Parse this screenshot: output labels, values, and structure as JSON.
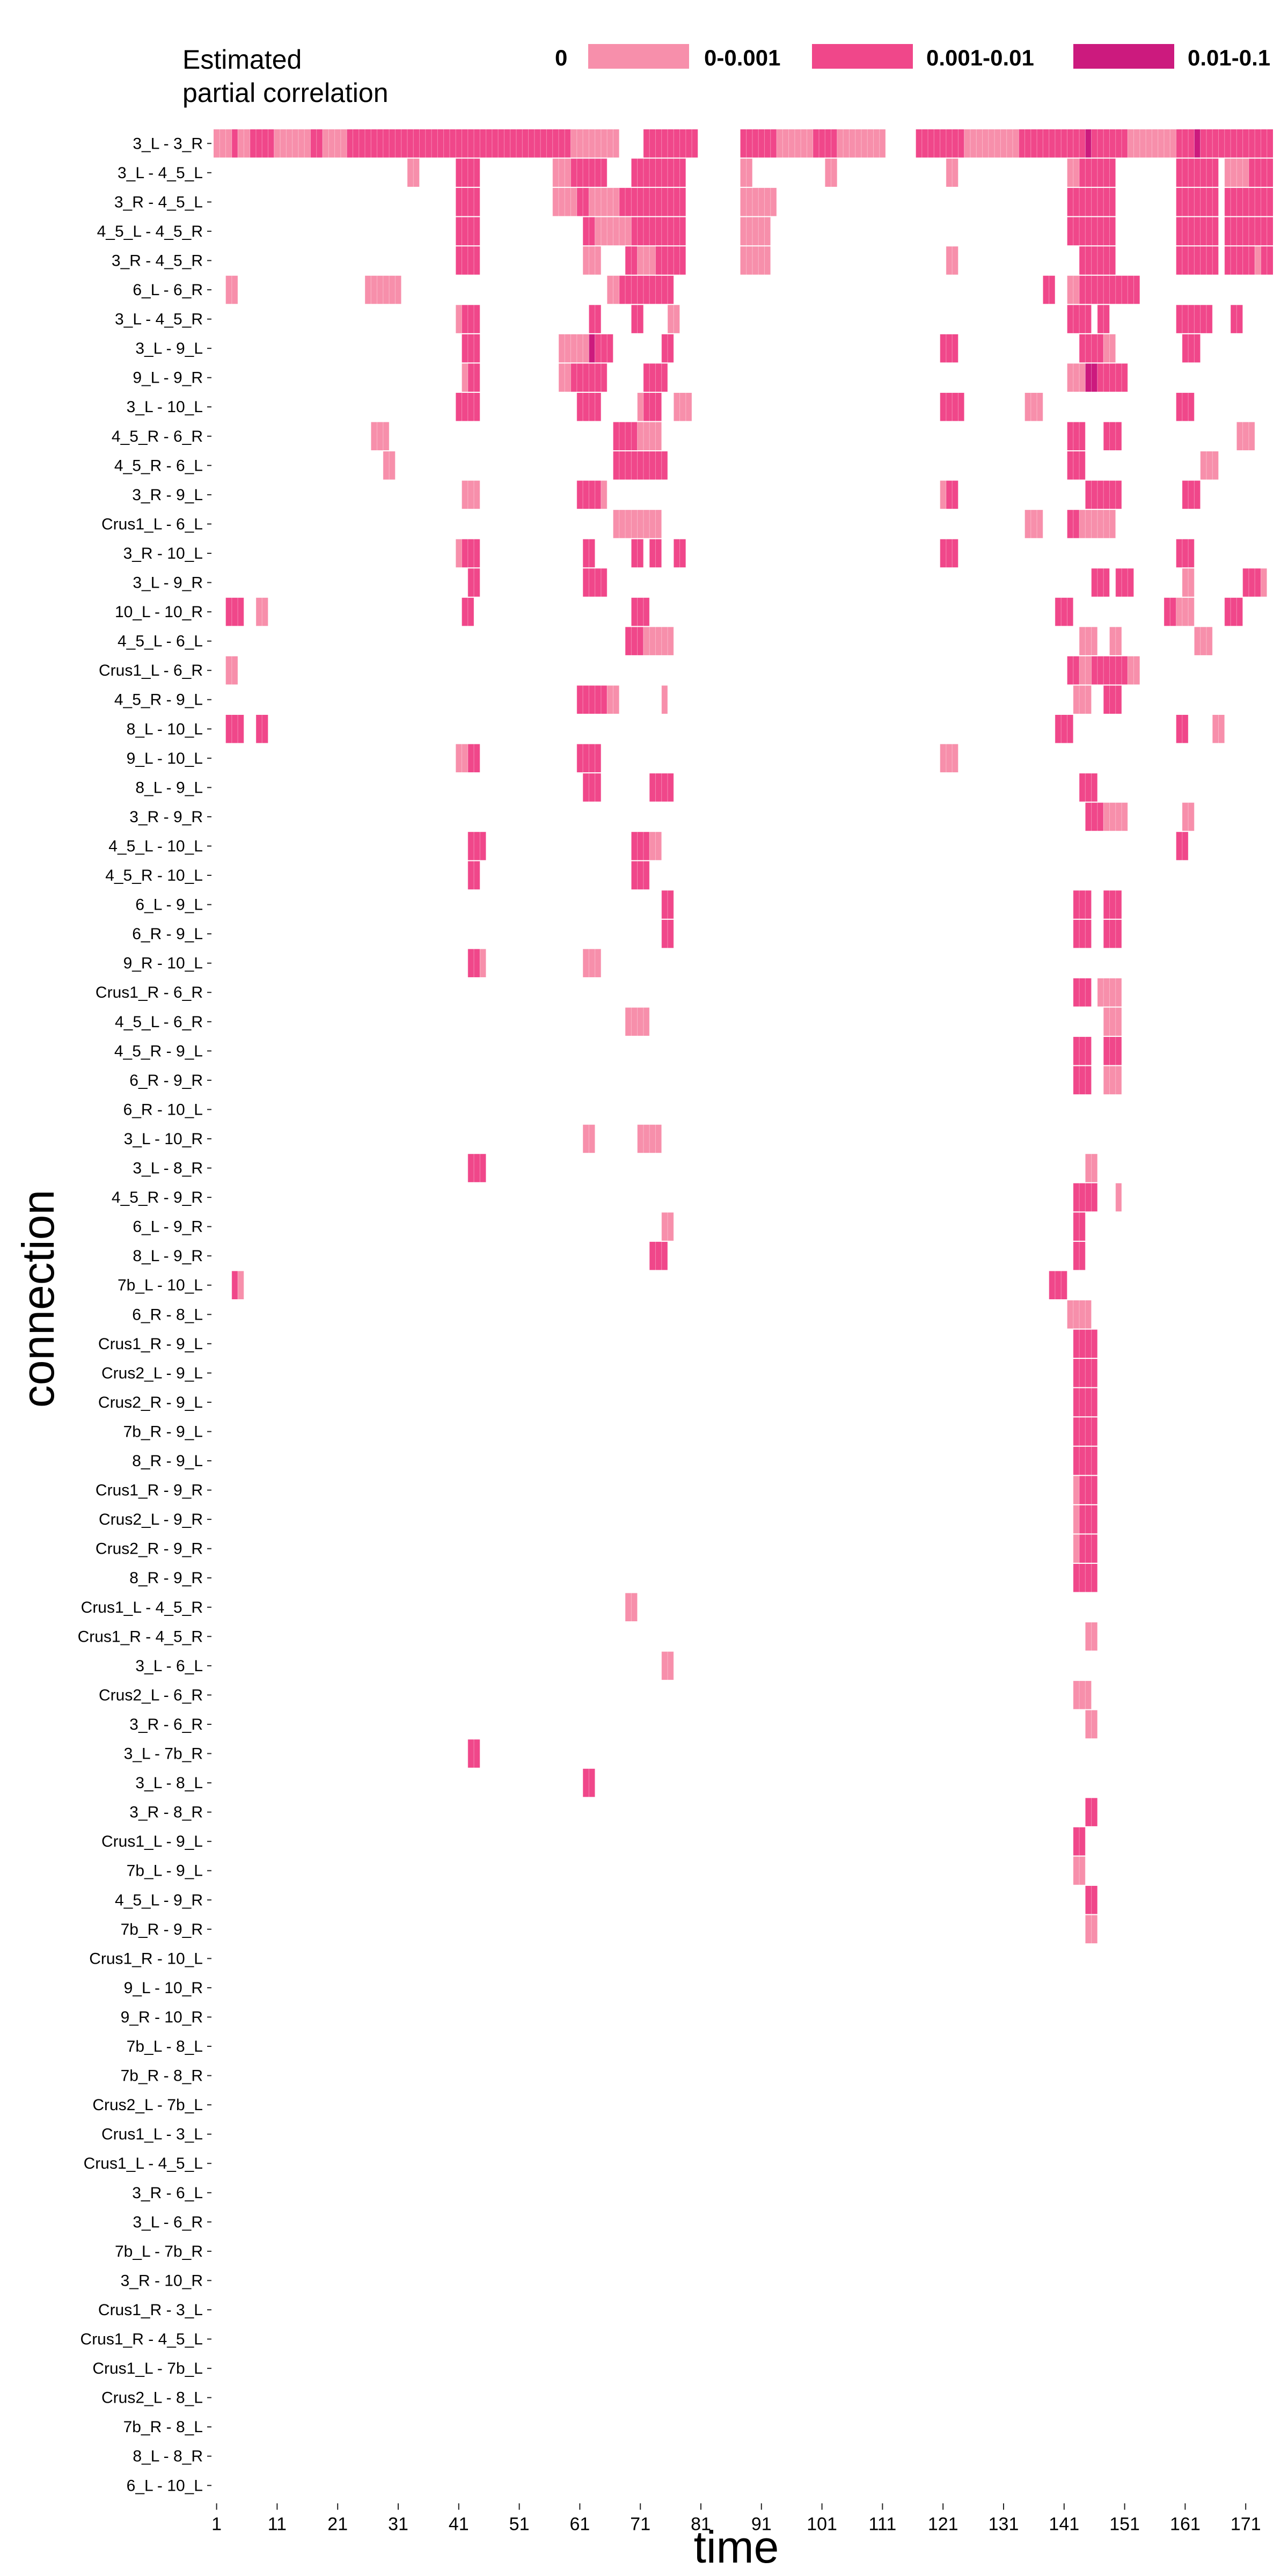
{
  "chart_data": {
    "type": "heatmap",
    "xlabel": "time",
    "ylabel": "connection",
    "xlim": [
      1,
      176
    ],
    "x_ticks": [
      1,
      11,
      21,
      31,
      41,
      51,
      61,
      71,
      81,
      91,
      101,
      111,
      121,
      131,
      141,
      151,
      161,
      171
    ],
    "legend": {
      "title_line1": "Estimated",
      "title_line2": "partial correlation",
      "placement": "top",
      "entries": [
        {
          "label": "0",
          "color": "#ffffff"
        },
        {
          "label": "0-0.001",
          "color": "#f78fab"
        },
        {
          "label": "0.001-0.01",
          "color": "#f0478a"
        },
        {
          "label": "0.01-0.1",
          "color": "#cc1a7e"
        }
      ]
    },
    "colors": {
      "1": "#f78fab",
      "2": "#f0478a",
      "3": "#cc1a7e"
    },
    "connections": [
      "3_L - 3_R",
      "3_L - 4_5_L",
      "3_R - 4_5_L",
      "4_5_L - 4_5_R",
      "3_R - 4_5_R",
      "6_L - 6_R",
      "3_L - 4_5_R",
      "3_L - 9_L",
      "9_L - 9_R",
      "3_L - 10_L",
      "4_5_R - 6_R",
      "4_5_R - 6_L",
      "3_R - 9_L",
      "Crus1_L - 6_L",
      "3_R - 10_L",
      "3_L - 9_R",
      "10_L - 10_R",
      "4_5_L - 6_L",
      "Crus1_L - 6_R",
      "4_5_R - 9_L",
      "8_L - 10_L",
      "9_L - 10_L",
      "8_L - 9_L",
      "3_R - 9_R",
      "4_5_L - 10_L",
      "4_5_R - 10_L",
      "6_L - 9_L",
      "6_R - 9_L",
      "9_R - 10_L",
      "Crus1_R - 6_R",
      "4_5_L - 6_R",
      "4_5_R - 9_L",
      "6_R - 9_R",
      "6_R - 10_L",
      "3_L - 10_R",
      "3_L - 8_R",
      "4_5_R - 9_R",
      "6_L - 9_R",
      "8_L - 9_R",
      "7b_L - 10_L",
      "6_R - 8_L",
      "Crus1_R - 9_L",
      "Crus2_L - 9_L",
      "Crus2_R - 9_L",
      "7b_R - 9_L",
      "8_R - 9_L",
      "Crus1_R - 9_R",
      "Crus2_L - 9_R",
      "Crus2_R - 9_R",
      "8_R - 9_R",
      "Crus1_L - 4_5_R",
      "Crus1_R - 4_5_R",
      "3_L - 6_L",
      "Crus2_L - 6_R",
      "3_R - 6_R",
      "3_L - 7b_R",
      "3_L - 8_L",
      "3_R - 8_R",
      "Crus1_L - 9_L",
      "7b_L - 9_L",
      "4_5_L - 9_R",
      "7b_R - 9_R",
      "Crus1_R - 10_L",
      "9_L - 10_R",
      "9_R - 10_R",
      "7b_L - 8_L",
      "7b_R - 8_R",
      "Crus2_L - 7b_L",
      "Crus1_L - 3_L",
      "Crus1_L - 4_5_L",
      "3_R - 6_L",
      "3_L - 6_R",
      "7b_L - 7b_R",
      "3_R - 10_R",
      "Crus1_R - 3_L",
      "Crus1_R - 4_5_L",
      "Crus1_L - 7b_L",
      "Crus2_L - 8_L",
      "7b_R - 8_L",
      "8_L - 8_R",
      "6_L - 10_L"
    ],
    "segments": [
      [
        0,
        1,
        4,
        1
      ],
      [
        0,
        4,
        5,
        2
      ],
      [
        0,
        5,
        7,
        1
      ],
      [
        0,
        7,
        11,
        2
      ],
      [
        0,
        11,
        17,
        1
      ],
      [
        0,
        17,
        19,
        2
      ],
      [
        0,
        19,
        23,
        1
      ],
      [
        0,
        23,
        60,
        2
      ],
      [
        0,
        60,
        68,
        1
      ],
      [
        0,
        72,
        81,
        2
      ],
      [
        0,
        88,
        94,
        2
      ],
      [
        0,
        94,
        100,
        1
      ],
      [
        0,
        100,
        104,
        2
      ],
      [
        0,
        104,
        106,
        1
      ],
      [
        0,
        106,
        112,
        1
      ],
      [
        0,
        117,
        125,
        2
      ],
      [
        0,
        125,
        134,
        1
      ],
      [
        0,
        134,
        145,
        2
      ],
      [
        0,
        145,
        146,
        3
      ],
      [
        0,
        146,
        152,
        2
      ],
      [
        0,
        152,
        160,
        1
      ],
      [
        0,
        160,
        163,
        2
      ],
      [
        0,
        163,
        164,
        3
      ],
      [
        0,
        164,
        176,
        2
      ],
      [
        1,
        33,
        35,
        1
      ],
      [
        1,
        41,
        45,
        2
      ],
      [
        1,
        57,
        60,
        1
      ],
      [
        1,
        60,
        66,
        2
      ],
      [
        1,
        70,
        79,
        2
      ],
      [
        1,
        88,
        90,
        1
      ],
      [
        1,
        102,
        104,
        1
      ],
      [
        1,
        122,
        124,
        1
      ],
      [
        1,
        142,
        144,
        1
      ],
      [
        1,
        144,
        150,
        2
      ],
      [
        1,
        160,
        167,
        2
      ],
      [
        1,
        168,
        172,
        1
      ],
      [
        1,
        172,
        176,
        2
      ],
      [
        2,
        41,
        45,
        2
      ],
      [
        2,
        57,
        61,
        1
      ],
      [
        2,
        61,
        63,
        2
      ],
      [
        2,
        63,
        68,
        1
      ],
      [
        2,
        68,
        79,
        2
      ],
      [
        2,
        88,
        94,
        1
      ],
      [
        2,
        142,
        150,
        2
      ],
      [
        2,
        160,
        167,
        2
      ],
      [
        2,
        168,
        176,
        2
      ],
      [
        3,
        41,
        45,
        2
      ],
      [
        3,
        62,
        64,
        2
      ],
      [
        3,
        64,
        70,
        1
      ],
      [
        3,
        70,
        79,
        2
      ],
      [
        3,
        88,
        93,
        1
      ],
      [
        3,
        142,
        150,
        2
      ],
      [
        3,
        160,
        167,
        2
      ],
      [
        3,
        168,
        176,
        2
      ],
      [
        4,
        41,
        45,
        2
      ],
      [
        4,
        62,
        65,
        1
      ],
      [
        4,
        69,
        71,
        2
      ],
      [
        4,
        71,
        74,
        1
      ],
      [
        4,
        74,
        79,
        2
      ],
      [
        4,
        88,
        93,
        1
      ],
      [
        4,
        122,
        124,
        1
      ],
      [
        4,
        144,
        150,
        2
      ],
      [
        4,
        160,
        167,
        2
      ],
      [
        4,
        168,
        173,
        2
      ],
      [
        4,
        173,
        174,
        1
      ],
      [
        4,
        174,
        176,
        2
      ],
      [
        5,
        3,
        5,
        1
      ],
      [
        5,
        26,
        32,
        1
      ],
      [
        5,
        66,
        68,
        1
      ],
      [
        5,
        68,
        77,
        2
      ],
      [
        5,
        138,
        140,
        2
      ],
      [
        5,
        142,
        144,
        1
      ],
      [
        5,
        144,
        154,
        2
      ],
      [
        6,
        41,
        42,
        1
      ],
      [
        6,
        42,
        45,
        2
      ],
      [
        6,
        63,
        65,
        2
      ],
      [
        6,
        70,
        72,
        2
      ],
      [
        6,
        76,
        78,
        1
      ],
      [
        6,
        142,
        146,
        2
      ],
      [
        6,
        147,
        149,
        2
      ],
      [
        6,
        160,
        166,
        2
      ],
      [
        6,
        169,
        171,
        2
      ],
      [
        7,
        42,
        45,
        2
      ],
      [
        7,
        58,
        63,
        1
      ],
      [
        7,
        63,
        64,
        3
      ],
      [
        7,
        64,
        67,
        2
      ],
      [
        7,
        75,
        77,
        2
      ],
      [
        7,
        121,
        124,
        2
      ],
      [
        7,
        144,
        148,
        2
      ],
      [
        7,
        148,
        150,
        1
      ],
      [
        7,
        161,
        164,
        2
      ],
      [
        8,
        42,
        43,
        1
      ],
      [
        8,
        43,
        45,
        2
      ],
      [
        8,
        58,
        60,
        1
      ],
      [
        8,
        60,
        66,
        2
      ],
      [
        8,
        72,
        76,
        2
      ],
      [
        8,
        142,
        145,
        1
      ],
      [
        8,
        145,
        147,
        3
      ],
      [
        8,
        147,
        152,
        2
      ],
      [
        9,
        41,
        45,
        2
      ],
      [
        9,
        61,
        65,
        2
      ],
      [
        9,
        71,
        72,
        1
      ],
      [
        9,
        72,
        75,
        2
      ],
      [
        9,
        77,
        80,
        1
      ],
      [
        9,
        121,
        125,
        2
      ],
      [
        9,
        135,
        138,
        1
      ],
      [
        9,
        160,
        163,
        2
      ],
      [
        10,
        27,
        30,
        1
      ],
      [
        10,
        67,
        71,
        2
      ],
      [
        10,
        71,
        75,
        1
      ],
      [
        10,
        142,
        145,
        2
      ],
      [
        10,
        148,
        151,
        2
      ],
      [
        10,
        170,
        173,
        1
      ],
      [
        11,
        29,
        31,
        1
      ],
      [
        11,
        67,
        76,
        2
      ],
      [
        11,
        142,
        145,
        2
      ],
      [
        11,
        164,
        167,
        1
      ],
      [
        12,
        42,
        45,
        1
      ],
      [
        12,
        61,
        65,
        2
      ],
      [
        12,
        65,
        66,
        1
      ],
      [
        12,
        121,
        122,
        1
      ],
      [
        12,
        122,
        124,
        2
      ],
      [
        12,
        145,
        151,
        2
      ],
      [
        12,
        161,
        164,
        2
      ],
      [
        13,
        67,
        75,
        1
      ],
      [
        13,
        135,
        138,
        1
      ],
      [
        13,
        142,
        144,
        2
      ],
      [
        13,
        144,
        150,
        1
      ],
      [
        14,
        41,
        42,
        1
      ],
      [
        14,
        42,
        45,
        2
      ],
      [
        14,
        62,
        64,
        2
      ],
      [
        14,
        70,
        72,
        2
      ],
      [
        14,
        73,
        75,
        2
      ],
      [
        14,
        77,
        79,
        2
      ],
      [
        14,
        121,
        124,
        2
      ],
      [
        14,
        160,
        163,
        2
      ],
      [
        15,
        43,
        45,
        2
      ],
      [
        15,
        62,
        66,
        2
      ],
      [
        15,
        146,
        149,
        2
      ],
      [
        15,
        150,
        153,
        2
      ],
      [
        15,
        161,
        163,
        1
      ],
      [
        15,
        171,
        174,
        2
      ],
      [
        15,
        174,
        175,
        1
      ],
      [
        16,
        3,
        6,
        2
      ],
      [
        16,
        8,
        10,
        1
      ],
      [
        16,
        42,
        44,
        2
      ],
      [
        16,
        70,
        73,
        2
      ],
      [
        16,
        140,
        143,
        2
      ],
      [
        16,
        158,
        160,
        2
      ],
      [
        16,
        160,
        163,
        1
      ],
      [
        16,
        168,
        171,
        2
      ],
      [
        17,
        69,
        72,
        2
      ],
      [
        17,
        72,
        77,
        1
      ],
      [
        17,
        144,
        147,
        1
      ],
      [
        17,
        149,
        151,
        1
      ],
      [
        17,
        163,
        166,
        1
      ],
      [
        18,
        3,
        5,
        1
      ],
      [
        18,
        142,
        144,
        2
      ],
      [
        18,
        144,
        146,
        1
      ],
      [
        18,
        146,
        152,
        2
      ],
      [
        18,
        152,
        154,
        1
      ],
      [
        19,
        61,
        66,
        2
      ],
      [
        19,
        66,
        68,
        1
      ],
      [
        19,
        75,
        76,
        1
      ],
      [
        19,
        143,
        146,
        1
      ],
      [
        19,
        148,
        151,
        2
      ],
      [
        20,
        3,
        6,
        2
      ],
      [
        20,
        8,
        10,
        2
      ],
      [
        20,
        140,
        143,
        2
      ],
      [
        20,
        160,
        162,
        2
      ],
      [
        20,
        166,
        168,
        1
      ],
      [
        21,
        41,
        43,
        1
      ],
      [
        21,
        43,
        45,
        2
      ],
      [
        21,
        61,
        65,
        2
      ],
      [
        21,
        121,
        124,
        1
      ],
      [
        22,
        62,
        65,
        2
      ],
      [
        22,
        73,
        77,
        2
      ],
      [
        22,
        144,
        147,
        2
      ],
      [
        23,
        145,
        148,
        2
      ],
      [
        23,
        148,
        152,
        1
      ],
      [
        23,
        161,
        163,
        1
      ],
      [
        24,
        43,
        46,
        2
      ],
      [
        24,
        70,
        73,
        2
      ],
      [
        24,
        73,
        75,
        1
      ],
      [
        24,
        160,
        162,
        2
      ],
      [
        25,
        43,
        45,
        2
      ],
      [
        25,
        70,
        73,
        2
      ],
      [
        26,
        75,
        77,
        2
      ],
      [
        26,
        143,
        146,
        2
      ],
      [
        26,
        148,
        151,
        2
      ],
      [
        27,
        75,
        77,
        2
      ],
      [
        27,
        143,
        146,
        2
      ],
      [
        27,
        148,
        151,
        2
      ],
      [
        28,
        43,
        45,
        2
      ],
      [
        28,
        45,
        46,
        1
      ],
      [
        28,
        62,
        65,
        1
      ],
      [
        29,
        143,
        146,
        2
      ],
      [
        29,
        147,
        151,
        1
      ],
      [
        30,
        69,
        73,
        1
      ],
      [
        30,
        148,
        151,
        1
      ],
      [
        31,
        143,
        146,
        2
      ],
      [
        31,
        148,
        151,
        2
      ],
      [
        32,
        143,
        146,
        2
      ],
      [
        32,
        148,
        151,
        1
      ],
      [
        34,
        62,
        64,
        1
      ],
      [
        34,
        71,
        75,
        1
      ],
      [
        35,
        43,
        46,
        2
      ],
      [
        35,
        145,
        147,
        1
      ],
      [
        36,
        143,
        147,
        2
      ],
      [
        36,
        150,
        151,
        1
      ],
      [
        37,
        75,
        77,
        1
      ],
      [
        37,
        143,
        145,
        2
      ],
      [
        38,
        73,
        76,
        2
      ],
      [
        38,
        143,
        145,
        2
      ],
      [
        39,
        4,
        5,
        2
      ],
      [
        39,
        5,
        6,
        1
      ],
      [
        39,
        139,
        142,
        2
      ],
      [
        40,
        142,
        146,
        1
      ],
      [
        41,
        143,
        147,
        2
      ],
      [
        42,
        143,
        147,
        2
      ],
      [
        43,
        143,
        147,
        2
      ],
      [
        44,
        143,
        147,
        2
      ],
      [
        45,
        143,
        147,
        2
      ],
      [
        46,
        143,
        144,
        1
      ],
      [
        46,
        144,
        147,
        2
      ],
      [
        47,
        143,
        144,
        1
      ],
      [
        47,
        144,
        147,
        2
      ],
      [
        48,
        143,
        144,
        1
      ],
      [
        48,
        144,
        147,
        2
      ],
      [
        49,
        143,
        147,
        2
      ],
      [
        50,
        69,
        71,
        1
      ],
      [
        51,
        145,
        147,
        1
      ],
      [
        52,
        75,
        77,
        1
      ],
      [
        53,
        143,
        146,
        1
      ],
      [
        54,
        145,
        147,
        1
      ],
      [
        55,
        43,
        45,
        2
      ],
      [
        56,
        62,
        64,
        2
      ],
      [
        57,
        145,
        147,
        2
      ],
      [
        58,
        143,
        145,
        2
      ],
      [
        59,
        143,
        145,
        1
      ],
      [
        60,
        145,
        147,
        2
      ],
      [
        61,
        145,
        147,
        1
      ]
    ]
  }
}
